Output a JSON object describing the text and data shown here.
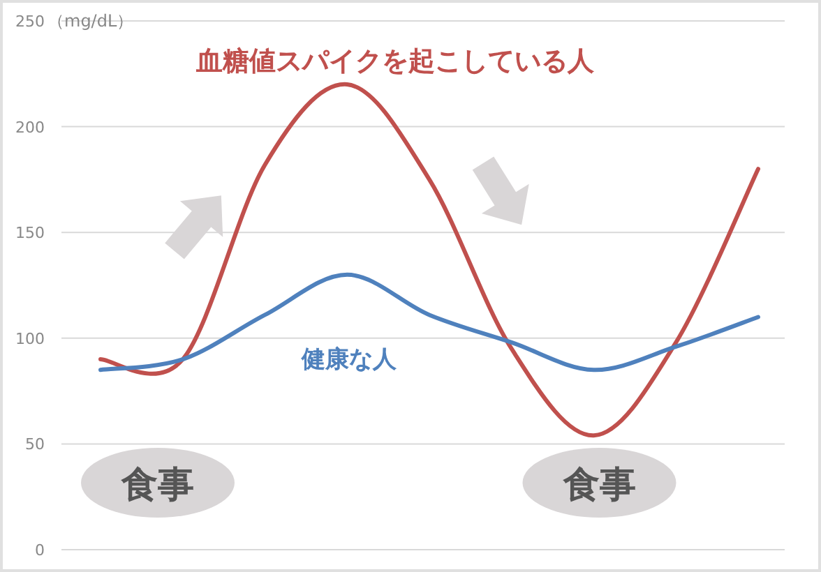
{
  "chart_data": {
    "type": "line",
    "categories": [
      null,
      null,
      null,
      null,
      null,
      null,
      null,
      null,
      null
    ],
    "ylabel": "（mg/dL）",
    "series": [
      {
        "name": "血糖値スパイクを起こしている人",
        "color": "#c0504d",
        "values": [
          90,
          90,
          182,
          220,
          175,
          95,
          54,
          98,
          180
        ]
      },
      {
        "name": "健康な人",
        "color": "#4f81bd",
        "values": [
          85,
          90,
          111,
          130,
          111,
          98,
          85,
          96,
          110
        ]
      }
    ],
    "annotations": [
      "食事",
      "食事"
    ],
    "ylim": [
      0,
      250
    ],
    "yticks": [
      0,
      50,
      100,
      150,
      200,
      250
    ],
    "grid": "y",
    "legend": false,
    "marker": "none",
    "line_style": "solid"
  }
}
